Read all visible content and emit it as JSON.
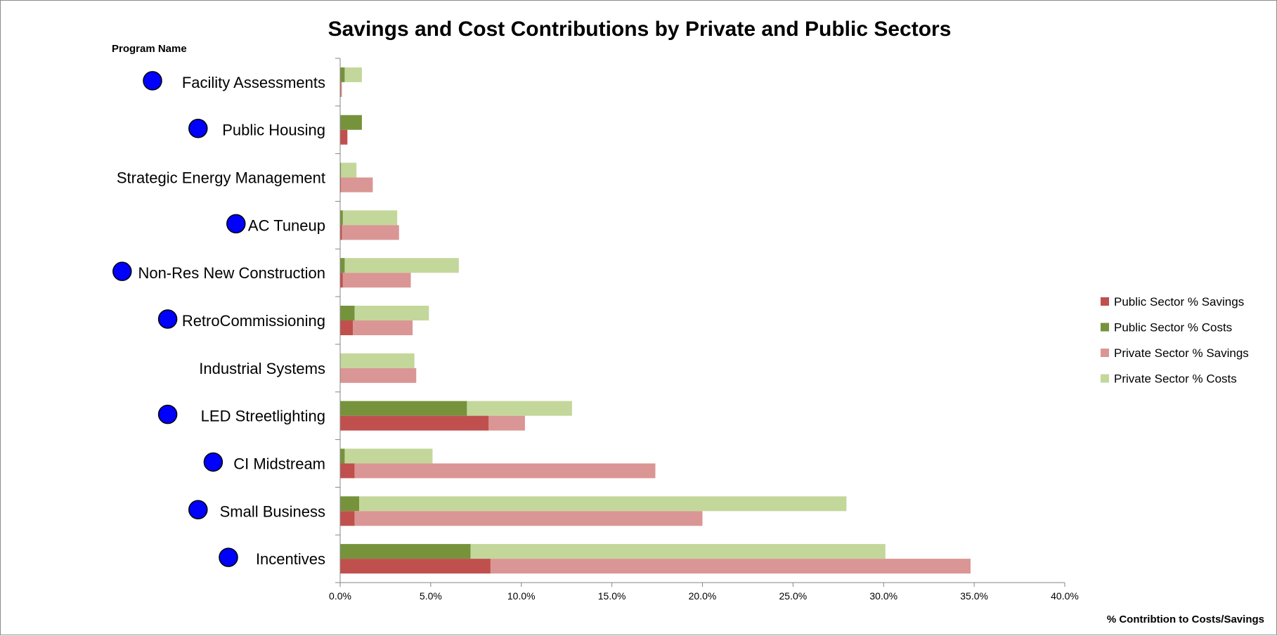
{
  "chart_data": {
    "type": "bar",
    "orientation": "horizontal",
    "title": "Savings and Cost Contributions by Private and Public Sectors",
    "ylabel": "Program Name",
    "xlabel": "% Contribtion to Costs/Savings",
    "xlim": [
      0,
      40
    ],
    "x_ticks": [
      "0.0%",
      "5.0%",
      "10.0%",
      "15.0%",
      "20.0%",
      "25.0%",
      "30.0%",
      "35.0%",
      "40.0%"
    ],
    "grid": false,
    "legend_position": "right",
    "categories": [
      "Facility Assessments",
      "Public Housing",
      "Strategic Energy Management",
      "AC Tuneup",
      "Non-Res New Construction",
      "RetroCommissioning",
      "Industrial Systems",
      "LED Streetlighting",
      "CI Midstream",
      "Small Business",
      "Incentives"
    ],
    "marked_categories": [
      "Facility Assessments",
      "Public Housing",
      "AC Tuneup",
      "Non-Res New Construction",
      "RetroCommissioning",
      "LED Streetlighting",
      "CI Midstream",
      "Small Business",
      "Incentives"
    ],
    "marker_color": "#0000ff",
    "series": [
      {
        "name": "Public Sector % Savings",
        "group": "savings",
        "color": "#c0504d",
        "values": [
          0.05,
          0.4,
          0.05,
          0.1,
          0.15,
          0.7,
          0.0,
          8.2,
          0.8,
          0.8,
          8.3
        ]
      },
      {
        "name": "Public Sector % Costs",
        "group": "costs",
        "color": "#76933c",
        "values": [
          0.25,
          1.2,
          0.05,
          0.15,
          0.25,
          0.8,
          0.0,
          7.0,
          0.25,
          1.05,
          7.2
        ]
      },
      {
        "name": "Private Sector % Savings",
        "group": "savings",
        "color": "#da9694",
        "values": [
          0.05,
          0.0,
          1.75,
          3.15,
          3.75,
          3.3,
          4.2,
          2.0,
          16.6,
          19.2,
          26.5
        ]
      },
      {
        "name": "Private Sector % Costs",
        "group": "costs",
        "color": "#c4d79b",
        "values": [
          0.95,
          0.0,
          0.85,
          3.0,
          6.3,
          4.1,
          4.1,
          5.8,
          4.85,
          26.9,
          22.9
        ]
      }
    ]
  }
}
